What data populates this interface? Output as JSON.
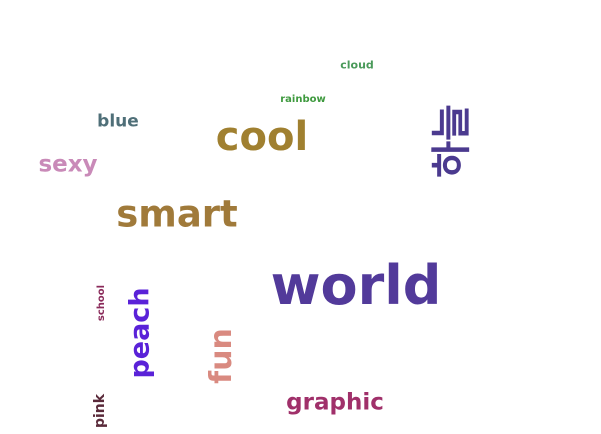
{
  "words": [
    {
      "key": "cloud",
      "text": "cloud",
      "color": "#4a9a5a"
    },
    {
      "key": "rainbow",
      "text": "rainbow",
      "color": "#3f9a3f"
    },
    {
      "key": "blue",
      "text": "blue",
      "color": "#4f6f78"
    },
    {
      "key": "cool",
      "text": "cool",
      "color": "#a08030"
    },
    {
      "key": "korean",
      "text": "하늘",
      "color": "#4b3a8f"
    },
    {
      "key": "sexy",
      "text": "sexy",
      "color": "#c98ab8"
    },
    {
      "key": "smart",
      "text": "smart",
      "color": "#a07a3a"
    },
    {
      "key": "world",
      "text": "world",
      "color": "#523a9a"
    },
    {
      "key": "school",
      "text": "school",
      "color": "#8a2a5a"
    },
    {
      "key": "peach",
      "text": "peach",
      "color": "#5a22d8"
    },
    {
      "key": "fun",
      "text": "fun",
      "color": "#d98a80"
    },
    {
      "key": "graphic",
      "text": "graphic",
      "color": "#a0306a"
    },
    {
      "key": "pink",
      "text": "pink",
      "color": "#5a2a3a"
    }
  ]
}
